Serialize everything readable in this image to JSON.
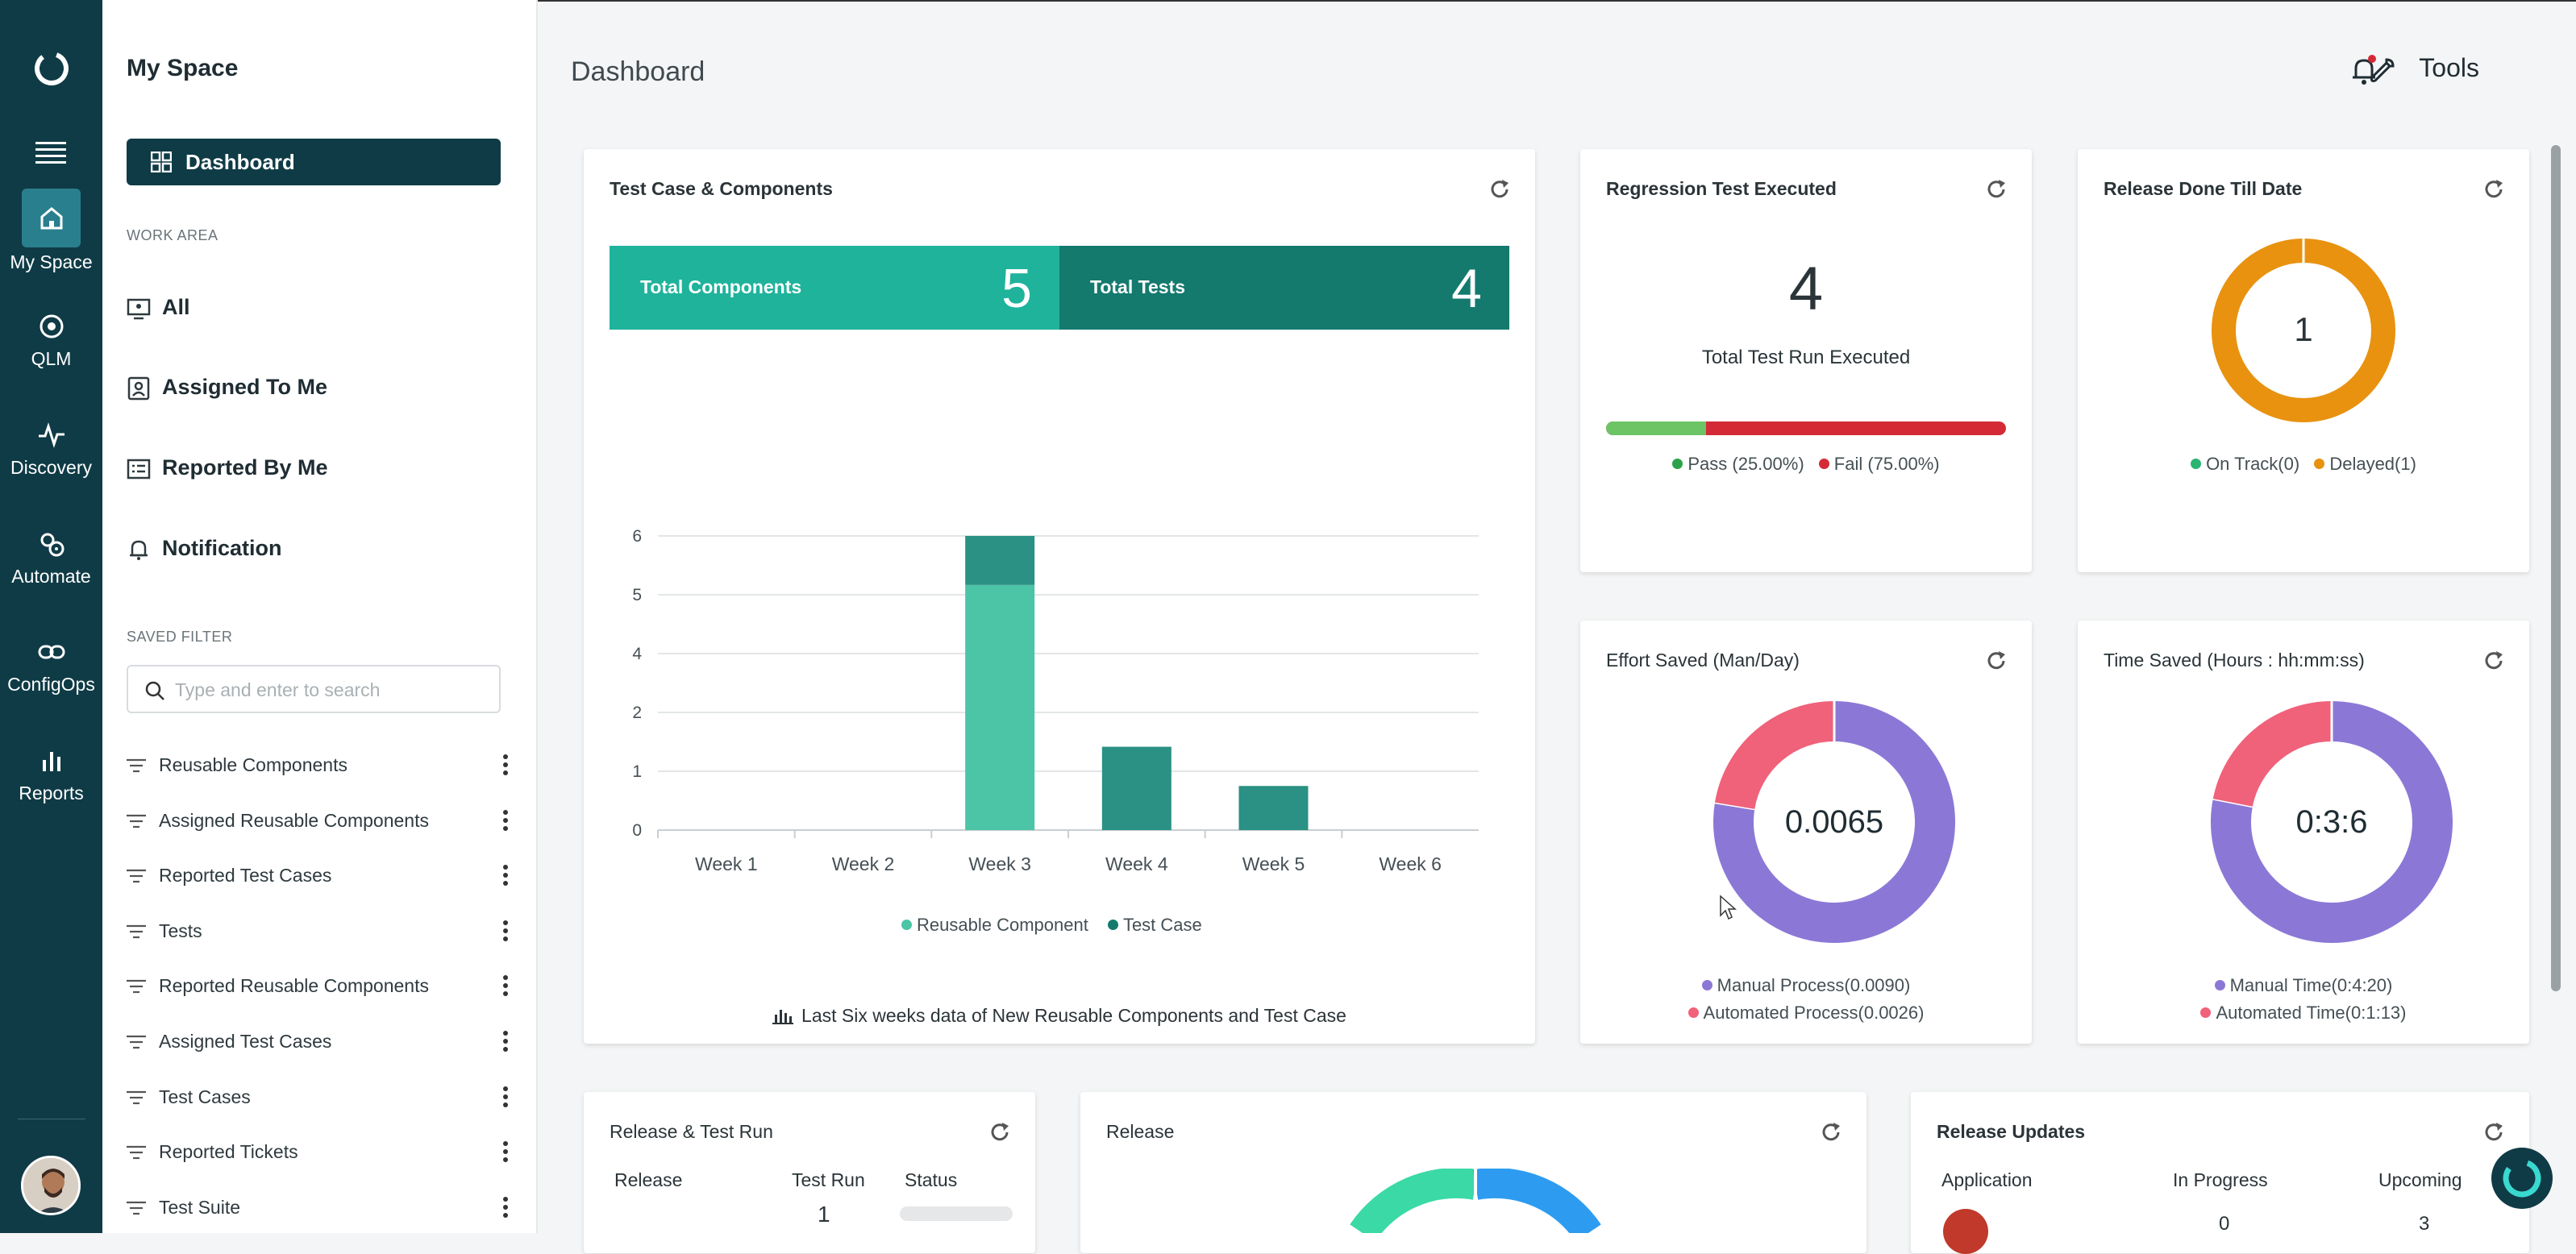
{
  "rail": {
    "items": [
      {
        "label": "My Space",
        "icon": "home-icon",
        "active": true
      },
      {
        "label": "QLM",
        "icon": "target-icon"
      },
      {
        "label": "Discovery",
        "icon": "pulse-icon"
      },
      {
        "label": "Automate",
        "icon": "gears-icon"
      },
      {
        "label": "ConfigOps",
        "icon": "link-icon"
      },
      {
        "label": "Reports",
        "icon": "bar-chart-icon"
      }
    ]
  },
  "sidebar": {
    "title": "My Space",
    "dashboard_label": "Dashboard",
    "work_area_label": "WORK AREA",
    "nav": [
      {
        "label": "All",
        "icon": "monitor-icon"
      },
      {
        "label": "Assigned To Me",
        "icon": "assigned-icon"
      },
      {
        "label": "Reported By Me",
        "icon": "list-icon"
      },
      {
        "label": "Notification",
        "icon": "bell-icon"
      }
    ],
    "saved_filter_label": "SAVED FILTER",
    "search_placeholder": "Type and enter to search",
    "filters": [
      "Reusable Components",
      "Assigned Reusable Components",
      "Reported Test Cases",
      "Tests",
      "Reported Reusable Components",
      "Assigned Test Cases",
      "Test Cases",
      "Reported Tickets",
      "Test Suite"
    ]
  },
  "header": {
    "title": "Dashboard",
    "tools_label": "Tools"
  },
  "cards": {
    "test_case_components": {
      "title": "Test Case & Components",
      "total_components_label": "Total Components",
      "total_components_value": "5",
      "total_tests_label": "Total Tests",
      "total_tests_value": "4",
      "footer": "Last Six weeks data of New Reusable Components and Test Case"
    },
    "regression": {
      "title": "Regression Test Executed",
      "value": "4",
      "subtitle": "Total Test Run Executed",
      "pass_fraction": 0.25,
      "pass_label": "Pass (25.00%)",
      "fail_label": "Fail (75.00%)"
    },
    "release_done": {
      "title": "Release Done Till Date",
      "value": "1",
      "on_track_label": "On Track(0)",
      "delayed_label": "Delayed(1)"
    },
    "effort_saved": {
      "title": "Effort Saved (Man/Day)",
      "value": "0.0065",
      "manual_label": "Manual Process(0.0090)",
      "automated_label": "Automated Process(0.0026)",
      "manual": 0.009,
      "automated": 0.0026
    },
    "time_saved": {
      "title": "Time Saved (Hours : hh:mm:ss)",
      "value": "0:3:6",
      "manual_label": "Manual Time(0:4:20)",
      "automated_label": "Automated Time(0:1:13)",
      "manual": 260,
      "automated": 73
    },
    "release_test_run": {
      "title": "Release & Test Run",
      "col_release": "Release",
      "col_test_run": "Test Run",
      "col_status": "Status",
      "row_test_run": "1"
    },
    "release": {
      "title": "Release"
    },
    "release_updates": {
      "title": "Release Updates",
      "col_application": "Application",
      "col_in_progress": "In Progress",
      "col_upcoming": "Upcoming",
      "row_in_progress": "0",
      "row_upcoming": "3"
    }
  },
  "colors": {
    "primary": "#0f3b46",
    "teal_light": "#1fb39c",
    "teal_dark": "#147a6e",
    "reusable": "#4cc4a6",
    "testcase": "#2a9184",
    "pass": "#6cc464",
    "fail": "#d42a36",
    "delayed": "#e8920f",
    "on_track": "#2bb573",
    "manual": "#8b78d6",
    "automated": "#f0617a",
    "release_blue": "#2d9cf0",
    "release_green": "#3ad9a6"
  },
  "chart_data": {
    "type": "bar",
    "stacked": true,
    "categories": [
      "Week 1",
      "Week 2",
      "Week 3",
      "Week 4",
      "Week 5",
      "Week 6"
    ],
    "series": [
      {
        "name": "Reusable Component",
        "values": [
          0,
          0,
          5,
          0,
          0,
          0
        ]
      },
      {
        "name": "Test Case",
        "values": [
          0,
          0,
          1,
          1.7,
          0.9,
          0
        ]
      }
    ],
    "y_ticks": [
      "0",
      "1",
      "2",
      "4",
      "5",
      "6"
    ],
    "ylim": [
      0,
      6
    ],
    "grid": true,
    "legend": "bottom"
  }
}
